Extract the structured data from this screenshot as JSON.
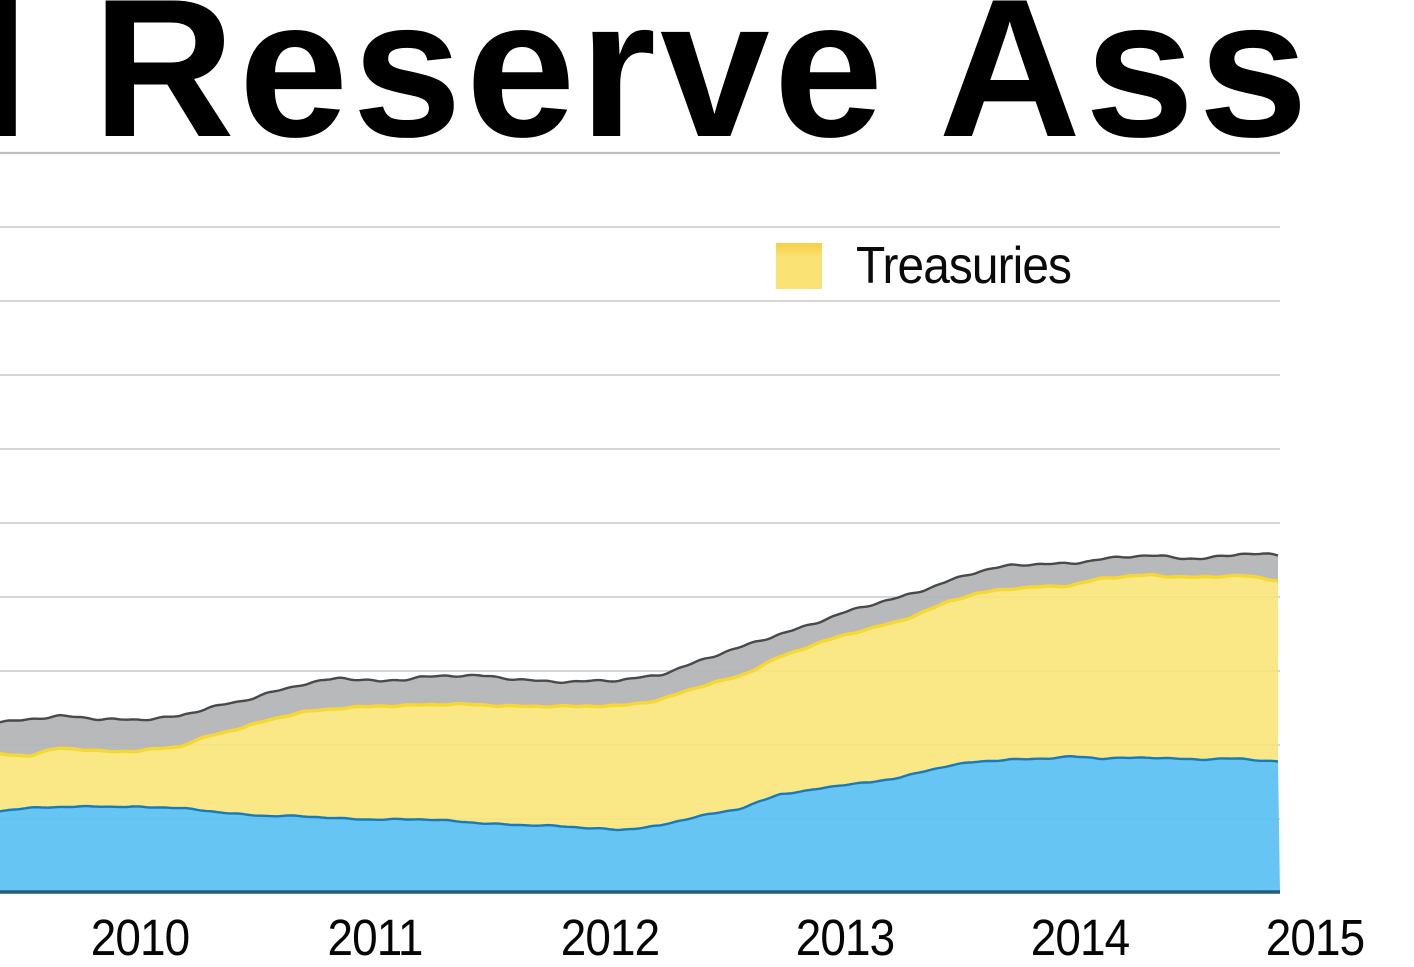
{
  "title": {
    "visible_text": "l Reserve Ass"
  },
  "legend": {
    "items": [
      {
        "label": "Treasuries",
        "swatch_color": "#fbe275",
        "swatch_edge_color": "#f6cf45"
      }
    ]
  },
  "x_axis": {
    "tick_labels": [
      "2010",
      "2011",
      "2012",
      "2013",
      "2014",
      "2015"
    ],
    "tick_years": [
      2010,
      2011,
      2012,
      2013,
      2014,
      2015
    ]
  },
  "y_axis": {
    "labels_visible": false,
    "gridline_intervals": 10
  },
  "colors": {
    "background": "#ffffff",
    "gridline": "#c6c8ca",
    "top_rule": "#bcbec0",
    "axis_line": "#235a7d",
    "blue_fill": "#5bc1f2",
    "blue_edge": "#1b79b5",
    "yellow_fill": "#fae478",
    "yellow_edge": "#f6d835",
    "gray_fill": "#b4b5b7",
    "gray_edge": "#48494b",
    "text": "#000000"
  },
  "chart_data": {
    "type": "area",
    "stacked": true,
    "title_visible_fragment": "l Reserve Ass",
    "legend_visible": [
      "Treasuries"
    ],
    "y_units": "gridline intervals above baseline (y-axis value labels are cropped out of view)",
    "x_tick_years": [
      2010,
      2011,
      2012,
      2013,
      2014,
      2015
    ],
    "x_years": [
      2009.4,
      2009.53,
      2009.66,
      2009.83,
      2010.0,
      2010.17,
      2010.3,
      2010.43,
      2010.55,
      2010.68,
      2010.85,
      2011.02,
      2011.19,
      2011.32,
      2011.45,
      2011.7,
      2011.87,
      2012.04,
      2012.21,
      2012.38,
      2012.55,
      2012.72,
      2012.85,
      2012.98,
      2013.11,
      2013.23,
      2013.45,
      2013.57,
      2013.7,
      2013.83,
      2013.96,
      2014.09,
      2014.3,
      2014.51,
      2014.68,
      2014.85
    ],
    "series": [
      {
        "name": "unlabeled-blue-series",
        "legend_label": "",
        "fill": "#5bc1f2",
        "edge": "#1b79b5",
        "stacked_top": [
          1.11,
          1.14,
          1.16,
          1.18,
          1.16,
          1.14,
          1.11,
          1.07,
          1.04,
          1.03,
          1.01,
          1.0,
          0.99,
          0.97,
          0.95,
          0.91,
          0.88,
          0.86,
          0.91,
          1.03,
          1.14,
          1.34,
          1.38,
          1.45,
          1.5,
          1.57,
          1.72,
          1.77,
          1.81,
          1.82,
          1.84,
          1.81,
          1.84,
          1.8,
          1.81,
          1.78
        ]
      },
      {
        "name": "treasuries",
        "legend_label": "Treasuries",
        "fill": "#fae478",
        "edge": "#f6d835",
        "stacked_top": [
          1.89,
          1.85,
          1.95,
          1.92,
          1.93,
          1.97,
          2.12,
          2.24,
          2.35,
          2.43,
          2.49,
          2.54,
          2.54,
          2.54,
          2.54,
          2.53,
          2.51,
          2.53,
          2.62,
          2.78,
          2.92,
          3.2,
          3.34,
          3.46,
          3.57,
          3.68,
          3.95,
          4.04,
          4.11,
          4.15,
          4.16,
          4.24,
          4.3,
          4.27,
          4.28,
          4.22
        ]
      },
      {
        "name": "unlabeled-gray-series",
        "legend_label": "",
        "fill": "#b4b5b7",
        "edge": "#48494b",
        "stacked_top": [
          2.32,
          2.36,
          2.38,
          2.34,
          2.36,
          2.39,
          2.49,
          2.59,
          2.72,
          2.82,
          2.89,
          2.86,
          2.93,
          2.93,
          2.92,
          2.88,
          2.85,
          2.86,
          2.96,
          3.14,
          3.3,
          3.5,
          3.64,
          3.77,
          3.88,
          3.99,
          4.24,
          4.34,
          4.41,
          4.45,
          4.47,
          4.51,
          4.55,
          4.53,
          4.58,
          4.55
        ]
      }
    ]
  }
}
